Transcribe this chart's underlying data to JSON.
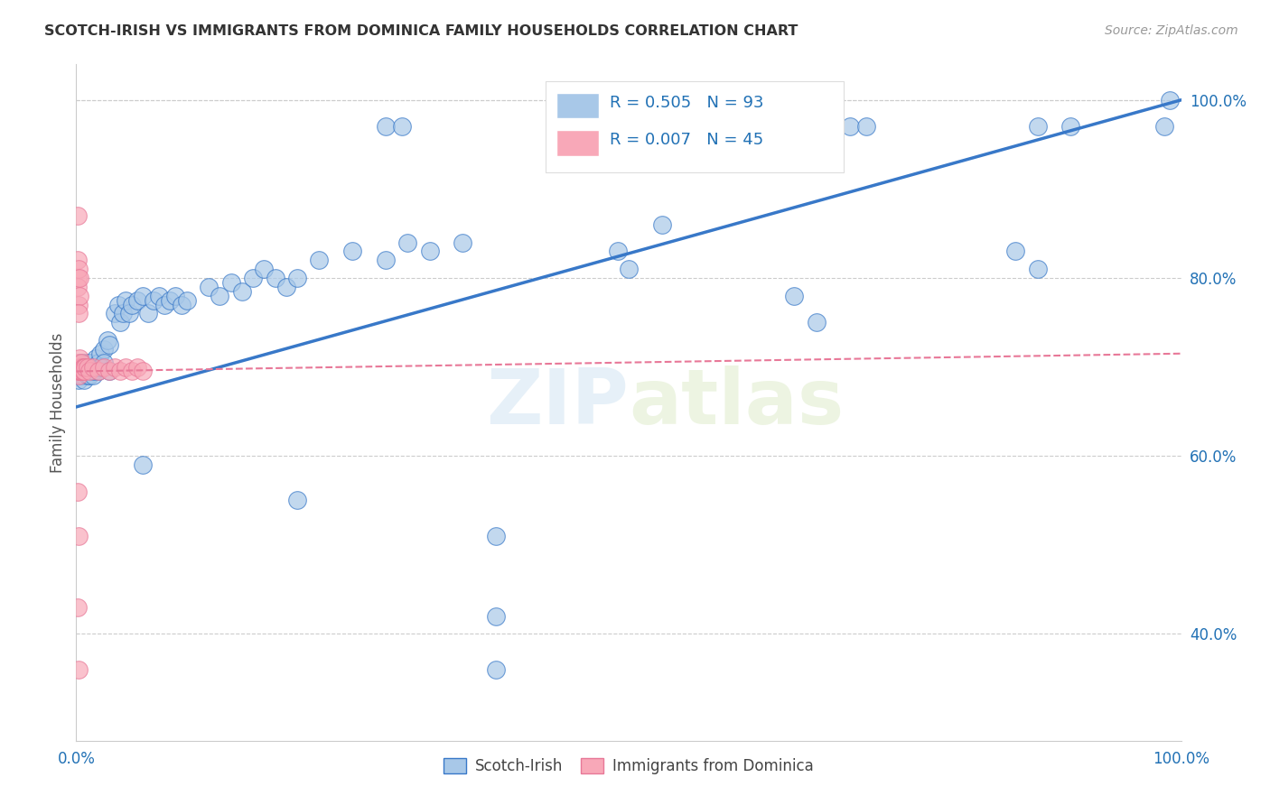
{
  "title": "SCOTCH-IRISH VS IMMIGRANTS FROM DOMINICA FAMILY HOUSEHOLDS CORRELATION CHART",
  "source": "Source: ZipAtlas.com",
  "ylabel": "Family Households",
  "xlim": [
    0.0,
    1.0
  ],
  "ylim": [
    0.28,
    1.04
  ],
  "blue_color": "#a8c8e8",
  "blue_color_line": "#3878c8",
  "pink_color": "#f8a8b8",
  "pink_color_line": "#e87898",
  "legend_blue_label": "Scotch-Irish",
  "legend_pink_label": "Immigrants from Dominica",
  "R_blue": 0.505,
  "N_blue": 93,
  "R_pink": 0.007,
  "N_pink": 45,
  "blue_trend": [
    0.0,
    1.0,
    0.655,
    1.0
  ],
  "pink_trend": [
    0.0,
    1.0,
    0.695,
    0.715
  ],
  "watermark": "ZIPatlas",
  "background_color": "#ffffff",
  "grid_color": "#cccccc",
  "axis_color": "#2171b5",
  "title_color": "#333333",
  "source_color": "#999999"
}
